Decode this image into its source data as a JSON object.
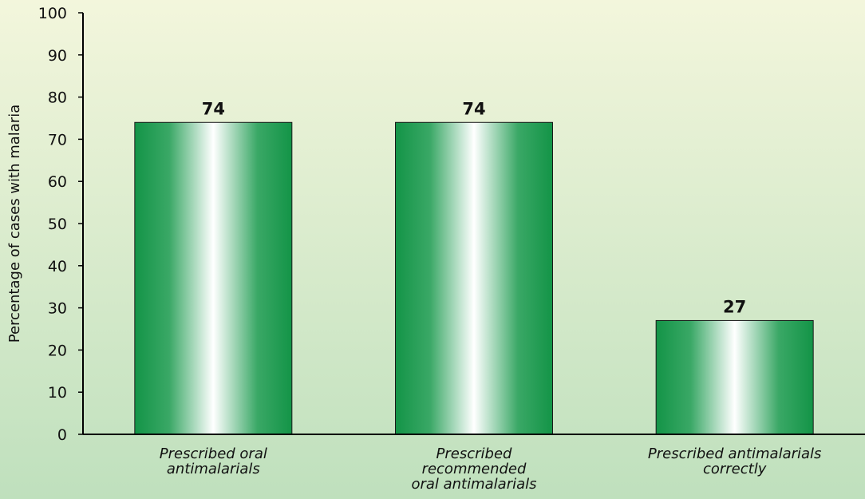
{
  "chart_data": {
    "type": "bar",
    "ylabel": "Percentage of cases with malaria",
    "xlabel": "",
    "ylim": [
      0,
      100
    ],
    "yticks": [
      0,
      10,
      20,
      30,
      40,
      50,
      60,
      70,
      80,
      90,
      100
    ],
    "categories": [
      [
        "Prescribed oral",
        "antimalarials"
      ],
      [
        "Prescribed",
        "recommended",
        "oral antimalarials"
      ],
      [
        "Prescribed antimalarials",
        "correctly"
      ]
    ],
    "values": [
      74,
      74,
      27
    ],
    "data_labels": [
      "74",
      "74",
      "27"
    ],
    "grid": false,
    "legend": "none"
  },
  "colors": {
    "bar_edge": "#139447",
    "bar_center": "#ffffff",
    "bar_stroke": "#1a1a1a"
  }
}
